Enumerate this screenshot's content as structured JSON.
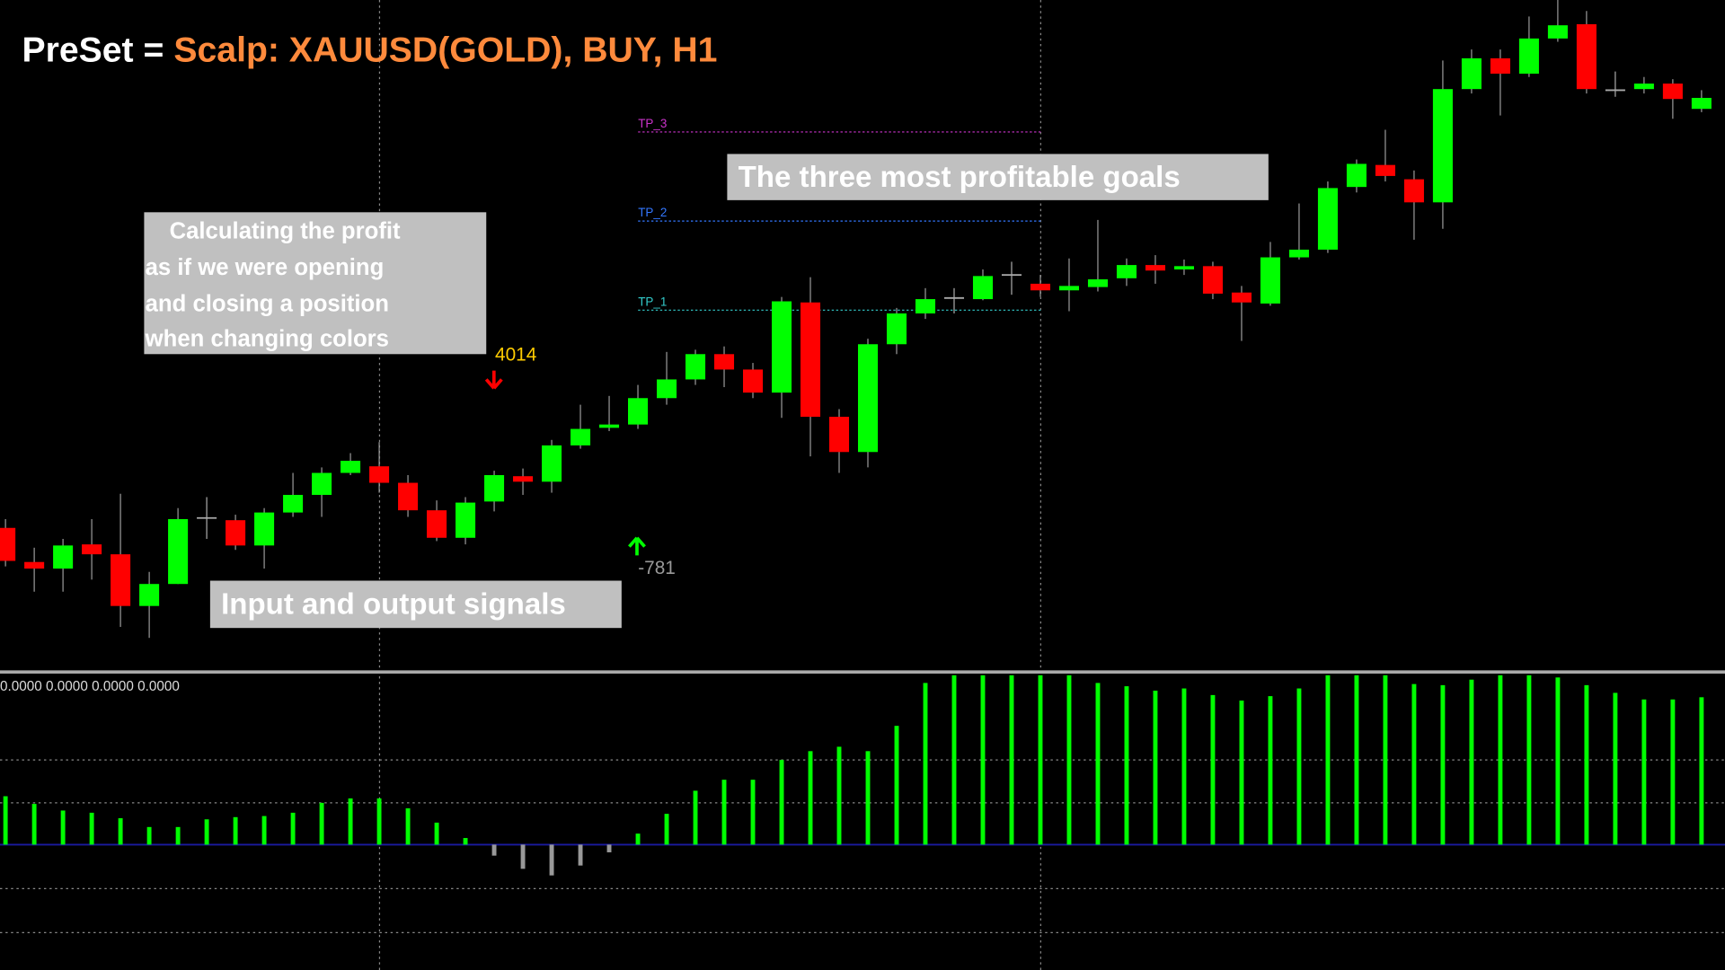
{
  "header": {
    "prefix": "PreSet =",
    "preset": "Scalp: XAUUSD(GOLD), BUY, H1"
  },
  "annotations": {
    "profit_note": [
      "Calculating the profit",
      "as if we were opening",
      "and closing a position",
      "when changing colors"
    ],
    "signals_note": "Input and output signals",
    "goals_note": "The three most profitable goals"
  },
  "chart_data": [
    {
      "type": "candlestick",
      "up_color": "#00ff00",
      "down_color": "#ff0000",
      "doji_color": "#aaaaaa",
      "ylim": [
        0,
        610
      ],
      "open": [
        130,
        99,
        93,
        115,
        106,
        59,
        79,
        139,
        137,
        114,
        144,
        160,
        180,
        186,
        171,
        146,
        121,
        154,
        177,
        172,
        205,
        221,
        224,
        248,
        265,
        288,
        274,
        253,
        335,
        231,
        199,
        297,
        325,
        339,
        338,
        360,
        352,
        346,
        349,
        357,
        369,
        365,
        368,
        344,
        334,
        376,
        383,
        440,
        460,
        447,
        426,
        529,
        557,
        543,
        575,
        588,
        528,
        529,
        534,
        511
      ],
      "high": [
        138,
        112,
        120,
        138,
        161,
        90,
        148,
        158,
        142,
        148,
        180,
        185,
        198,
        208,
        178,
        155,
        158,
        182,
        184,
        210,
        242,
        250,
        260,
        290,
        292,
        295,
        280,
        340,
        358,
        238,
        302,
        330,
        348,
        348,
        365,
        372,
        360,
        375,
        410,
        375,
        378,
        374,
        372,
        350,
        390,
        425,
        445,
        465,
        492,
        455,
        555,
        565,
        565,
        595,
        610,
        600,
        545,
        540,
        538,
        528
      ],
      "low": [
        95,
        72,
        72,
        83,
        40,
        30,
        79,
        120,
        110,
        93,
        140,
        140,
        178,
        162,
        140,
        118,
        115,
        145,
        160,
        162,
        202,
        218,
        220,
        242,
        260,
        258,
        248,
        230,
        195,
        180,
        185,
        288,
        320,
        325,
        337,
        342,
        340,
        327,
        345,
        350,
        352,
        360,
        338,
        300,
        332,
        374,
        380,
        435,
        445,
        392,
        402,
        525,
        505,
        540,
        572,
        525,
        522,
        525,
        502,
        508
      ],
      "close": [
        100,
        93,
        114,
        106,
        59,
        79,
        138,
        139,
        114,
        144,
        160,
        180,
        191,
        171,
        146,
        121,
        153,
        178,
        172,
        205,
        220,
        224,
        248,
        265,
        288,
        274,
        253,
        336,
        231,
        199,
        297,
        325,
        338,
        339,
        359,
        360,
        346,
        350,
        356,
        369,
        364,
        368,
        343,
        335,
        376,
        383,
        439,
        461,
        450,
        426,
        529,
        557,
        543,
        575,
        587,
        529,
        528,
        534,
        520,
        521
      ],
      "levels": [
        {
          "name": "TP_3",
          "value": 490,
          "color": "#cc33cc"
        },
        {
          "name": "TP_2",
          "value": 409,
          "color": "#3377ff"
        },
        {
          "name": "TP_1",
          "value": 328,
          "color": "#33cccc"
        }
      ],
      "signals": [
        {
          "direction": "sell",
          "profit": 4014,
          "color": "#ff0000",
          "label_color": "#ffcc00"
        },
        {
          "direction": "buy",
          "profit": -781,
          "color": "#00ff00",
          "label_color": "#999999"
        }
      ]
    },
    {
      "type": "histogram",
      "pos_color": "#00ff00",
      "neg_color": "#999999",
      "ylim": [
        -114,
        156
      ],
      "label": "0.0000 0.0000 0.0000 0.0000",
      "values": [
        44,
        37,
        31,
        29,
        24,
        16,
        16,
        23,
        25,
        26,
        29,
        38,
        42,
        42,
        33,
        20,
        6,
        -10,
        -22,
        -28,
        -19,
        -7,
        10,
        28,
        49,
        59,
        59,
        77,
        85,
        89,
        85,
        108,
        147,
        154,
        154,
        154,
        154,
        154,
        147,
        144,
        140,
        142,
        136,
        131,
        135,
        142,
        154,
        154,
        154,
        146,
        145,
        150,
        154,
        154,
        152,
        145,
        138,
        132,
        132,
        134
      ]
    }
  ]
}
